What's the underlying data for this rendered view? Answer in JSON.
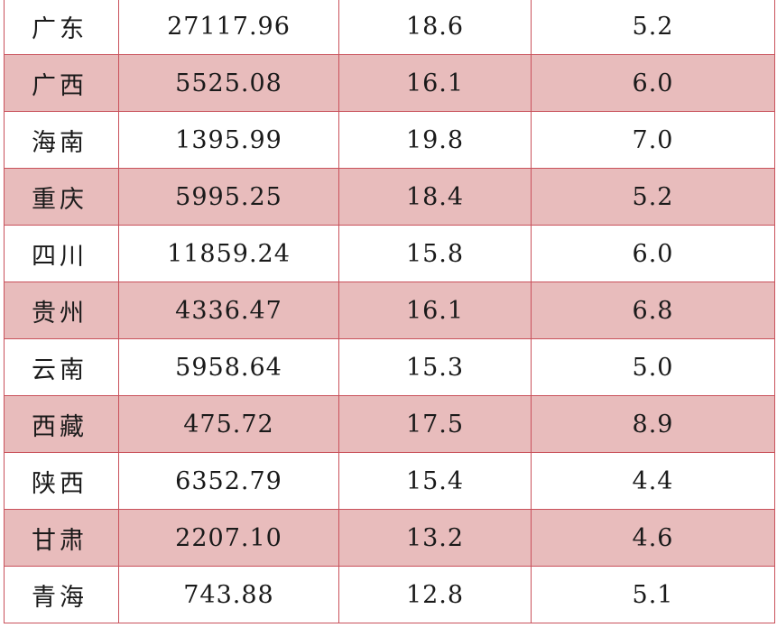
{
  "colors": {
    "border": "#c9515b",
    "shaded_row": "#e8bcbc",
    "plain_row": "#ffffff"
  },
  "chart_data": {
    "type": "table",
    "columns": [
      "",
      "",
      "",
      ""
    ],
    "rows": [
      {
        "region": "广东",
        "value": "27117.96",
        "rate1": "18.6",
        "rate2": "5.2"
      },
      {
        "region": "广西",
        "value": "5525.08",
        "rate1": "16.1",
        "rate2": "6.0"
      },
      {
        "region": "海南",
        "value": "1395.99",
        "rate1": "19.8",
        "rate2": "7.0"
      },
      {
        "region": "重庆",
        "value": "5995.25",
        "rate1": "18.4",
        "rate2": "5.2"
      },
      {
        "region": "四川",
        "value": "11859.24",
        "rate1": "15.8",
        "rate2": "6.0"
      },
      {
        "region": "贵州",
        "value": "4336.47",
        "rate1": "16.1",
        "rate2": "6.8"
      },
      {
        "region": "云南",
        "value": "5958.64",
        "rate1": "15.3",
        "rate2": "5.0"
      },
      {
        "region": "西藏",
        "value": "475.72",
        "rate1": "17.5",
        "rate2": "8.9"
      },
      {
        "region": "陕西",
        "value": "6352.79",
        "rate1": "15.4",
        "rate2": "4.4"
      },
      {
        "region": "甘肃",
        "value": "2207.10",
        "rate1": "13.2",
        "rate2": "4.6"
      },
      {
        "region": "青海",
        "value": "743.88",
        "rate1": "12.8",
        "rate2": "5.1"
      }
    ]
  }
}
